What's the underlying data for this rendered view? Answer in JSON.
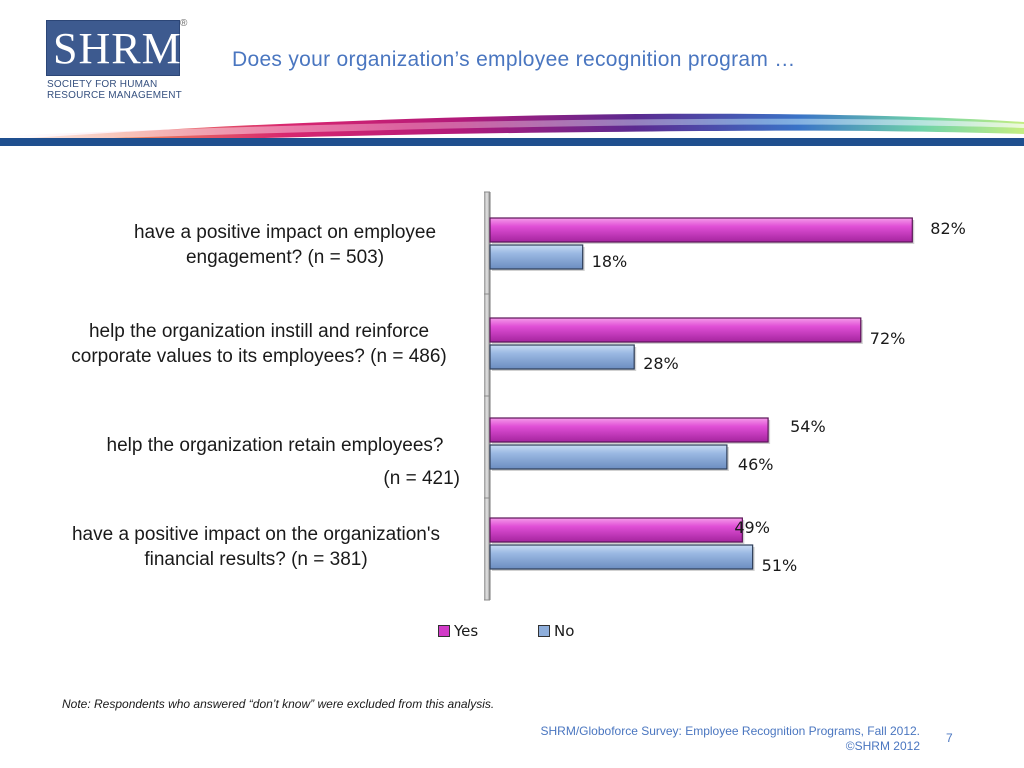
{
  "header": {
    "logo_letters": "SHRM",
    "logo_registered": "®",
    "logo_sub_line1": "SOCIETY FOR HUMAN",
    "logo_sub_line2": "RESOURCE MANAGEMENT",
    "title": "Does your organization’s employee recognition program …"
  },
  "colors": {
    "yes": "#d23bc8",
    "no": "#8eaedb",
    "title": "#4a76c0"
  },
  "chart_data": {
    "type": "bar",
    "orientation": "horizontal",
    "categories": [
      {
        "line1": "have a positive impact on employee",
        "line2": "engagement? (n = 503)"
      },
      {
        "line1": "help the organization instill and reinforce",
        "line2": "corporate values to its employees? (n = 486)"
      },
      {
        "line1": "help the organization retain employees?",
        "line2": "(n = 421)"
      },
      {
        "line1": "have a positive impact on the organization's",
        "line2": "financial results? (n = 381)"
      }
    ],
    "series": [
      {
        "name": "Yes",
        "values": [
          82,
          72,
          54,
          49
        ],
        "labels": [
          "82%",
          "72%",
          "54%",
          "49%"
        ]
      },
      {
        "name": "No",
        "values": [
          18,
          28,
          46,
          51
        ],
        "labels": [
          "18%",
          "28%",
          "46%",
          "51%"
        ]
      }
    ],
    "xlim": [
      0,
      100
    ],
    "legend": "bottom"
  },
  "footer": {
    "note": "Note: Respondents who answered “don’t know” were excluded from this analysis.",
    "source_line1": "SHRM/Globoforce Survey: Employee Recognition Programs, Fall 2012.",
    "source_line2": "©SHRM 2012",
    "page": "7"
  }
}
